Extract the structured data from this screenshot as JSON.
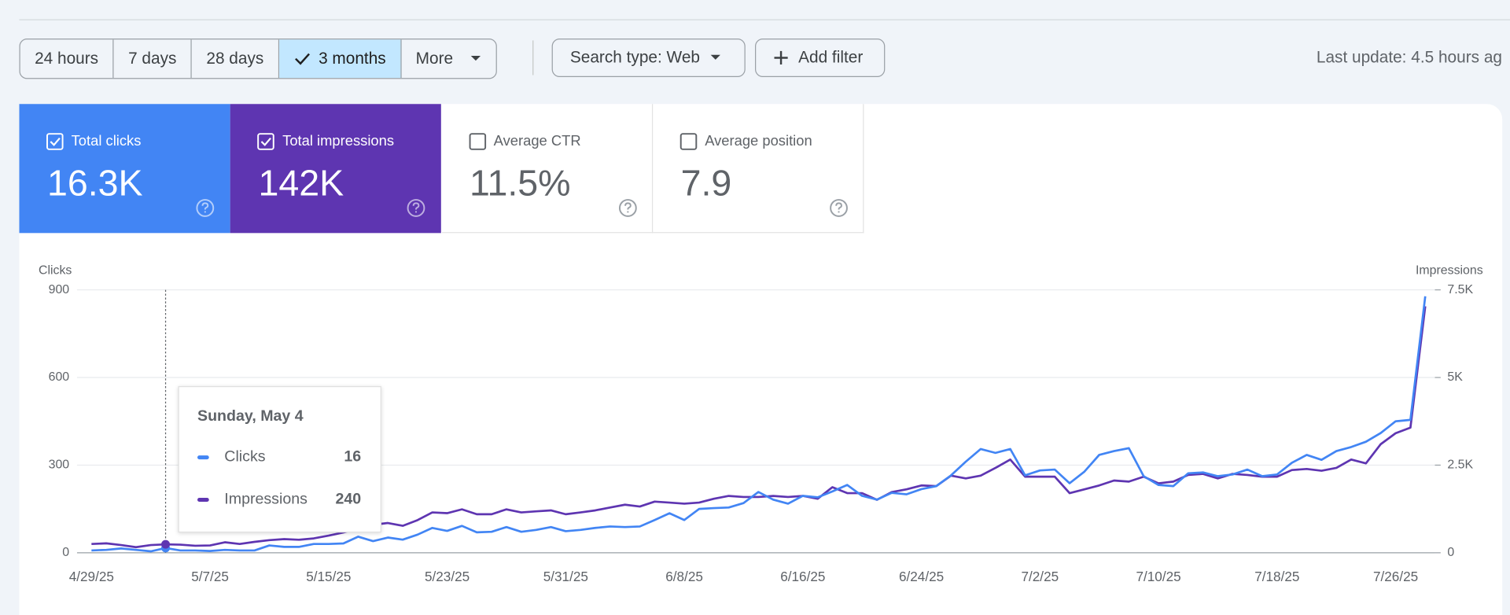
{
  "toolbar": {
    "ranges": [
      {
        "label": "24 hours",
        "selected": false
      },
      {
        "label": "7 days",
        "selected": false
      },
      {
        "label": "28 days",
        "selected": false
      },
      {
        "label": "3 months",
        "selected": true
      }
    ],
    "more": "More",
    "search_type": "Search type: Web",
    "add_filter": "Add filter",
    "last_update": "Last update: 4.5 hours ag"
  },
  "metrics": [
    {
      "label": "Total clicks",
      "value": "16.3K",
      "selected": true,
      "color": "#4285f4"
    },
    {
      "label": "Total impressions",
      "value": "142K",
      "selected": true,
      "color": "#5e35b1"
    },
    {
      "label": "Average CTR",
      "value": "11.5%",
      "selected": false,
      "color": "#00897b"
    },
    {
      "label": "Average position",
      "value": "7.9",
      "selected": false,
      "color": "#e8710a"
    }
  ],
  "chart_data": {
    "type": "line",
    "ylabel": "Clicks",
    "y2label": "Impressions",
    "categories": [
      "4/29/25",
      null,
      null,
      null,
      null,
      null,
      null,
      null,
      "5/7/25",
      null,
      null,
      null,
      null,
      null,
      null,
      null,
      "5/15/25",
      null,
      null,
      null,
      null,
      null,
      null,
      null,
      "5/23/25",
      null,
      null,
      null,
      null,
      null,
      null,
      null,
      "5/31/25",
      null,
      null,
      null,
      null,
      null,
      null,
      null,
      "6/8/25",
      null,
      null,
      null,
      null,
      null,
      null,
      null,
      "6/16/25",
      null,
      null,
      null,
      null,
      null,
      null,
      null,
      "6/24/25",
      null,
      null,
      null,
      null,
      null,
      null,
      null,
      "7/2/25",
      null,
      null,
      null,
      null,
      null,
      null,
      null,
      "7/10/25",
      null,
      null,
      null,
      null,
      null,
      null,
      null,
      "7/18/25",
      null,
      null,
      null,
      null,
      null,
      null,
      null,
      "7/26/25",
      null,
      null
    ],
    "ylim": [
      0,
      900
    ],
    "yticks": [
      0,
      300,
      600,
      900
    ],
    "y2lim": [
      0,
      7500
    ],
    "y2ticks": [
      0,
      {
        "value": 2500,
        "label": "2.5K"
      },
      {
        "value": 5000,
        "label": "5K"
      },
      {
        "value": 7500,
        "label": "7.5K"
      }
    ],
    "grid": true,
    "series": [
      {
        "name": "Clicks",
        "color": "#4285f4",
        "values": [
          8,
          10,
          15,
          10,
          5,
          16,
          8,
          8,
          6,
          10,
          8,
          8,
          25,
          20,
          20,
          30,
          30,
          32,
          55,
          40,
          52,
          45,
          62,
          85,
          75,
          92,
          70,
          72,
          88,
          72,
          78,
          88,
          74,
          78,
          85,
          90,
          88,
          90,
          112,
          135,
          112,
          150,
          153,
          155,
          170,
          208,
          182,
          168,
          195,
          190,
          210,
          232,
          195,
          182,
          205,
          200,
          218,
          228,
          265,
          312,
          355,
          342,
          355,
          265,
          282,
          285,
          238,
          278,
          335,
          348,
          358,
          262,
          232,
          228,
          272,
          275,
          262,
          268,
          285,
          262,
          268,
          308,
          335,
          318,
          348,
          362,
          380,
          410,
          450,
          455,
          878
        ]
      },
      {
        "name": "Impressions",
        "color": "#5e35b1",
        "axis": "y2",
        "values": [
          250,
          270,
          220,
          160,
          220,
          240,
          230,
          200,
          210,
          300,
          250,
          310,
          360,
          390,
          370,
          410,
          490,
          580,
          690,
          800,
          850,
          770,
          930,
          1150,
          1130,
          1240,
          1100,
          1100,
          1240,
          1150,
          1180,
          1210,
          1100,
          1150,
          1210,
          1290,
          1370,
          1320,
          1460,
          1430,
          1400,
          1430,
          1540,
          1620,
          1590,
          1590,
          1620,
          1590,
          1620,
          1540,
          1870,
          1700,
          1700,
          1510,
          1730,
          1810,
          1920,
          1900,
          2200,
          2120,
          2200,
          2420,
          2660,
          2170,
          2170,
          2170,
          1700,
          1810,
          1920,
          2060,
          2030,
          2170,
          1980,
          2030,
          2220,
          2250,
          2120,
          2250,
          2220,
          2170,
          2170,
          2360,
          2390,
          2340,
          2420,
          2660,
          2550,
          3100,
          3410,
          3570,
          7030
        ]
      }
    ],
    "tooltip": {
      "title": "Sunday, May 4"
    }
  }
}
